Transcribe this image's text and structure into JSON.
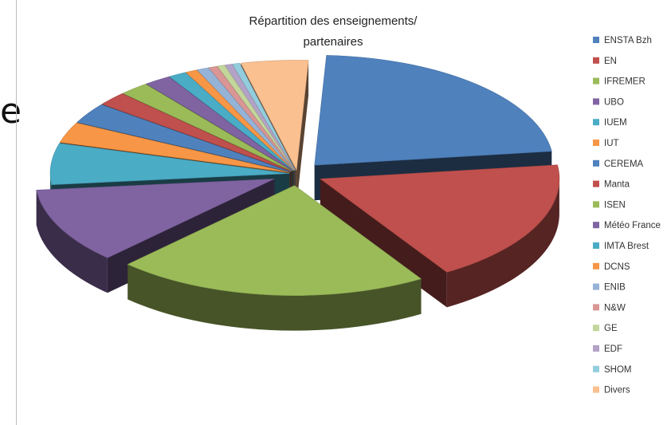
{
  "stray_glyph": "e",
  "chart_data": {
    "type": "pie",
    "title_lines": [
      "Répartition des enseignements/",
      "partenaires"
    ],
    "legend_placement": "right",
    "categories": [
      "ENSTA Bzh",
      "EN",
      "IFREMER",
      "UBO",
      "IUEM",
      "IUT",
      "CEREMA",
      "Manta",
      "ISEN",
      "Météo France",
      "IMTA Brest",
      "DCNS",
      "ENIB",
      "N&W",
      "GE",
      "EDF",
      "SHOM",
      "Divers"
    ],
    "values": [
      22,
      18,
      21,
      11,
      6,
      3,
      3,
      2,
      2,
      1.8,
      1.2,
      0.8,
      0.8,
      0.6,
      0.5,
      0.5,
      0.5,
      4.5
    ],
    "colors": [
      "#4f81bd",
      "#c0504d",
      "#9bbb59",
      "#8064a2",
      "#4bacc6",
      "#f79646",
      "#4f81bd",
      "#c0504d",
      "#9bbb59",
      "#8064a2",
      "#4bacc6",
      "#f79646",
      "#95b3d7",
      "#d99694",
      "#c3d69b",
      "#b3a2c7",
      "#93cddd",
      "#fac090"
    ]
  }
}
